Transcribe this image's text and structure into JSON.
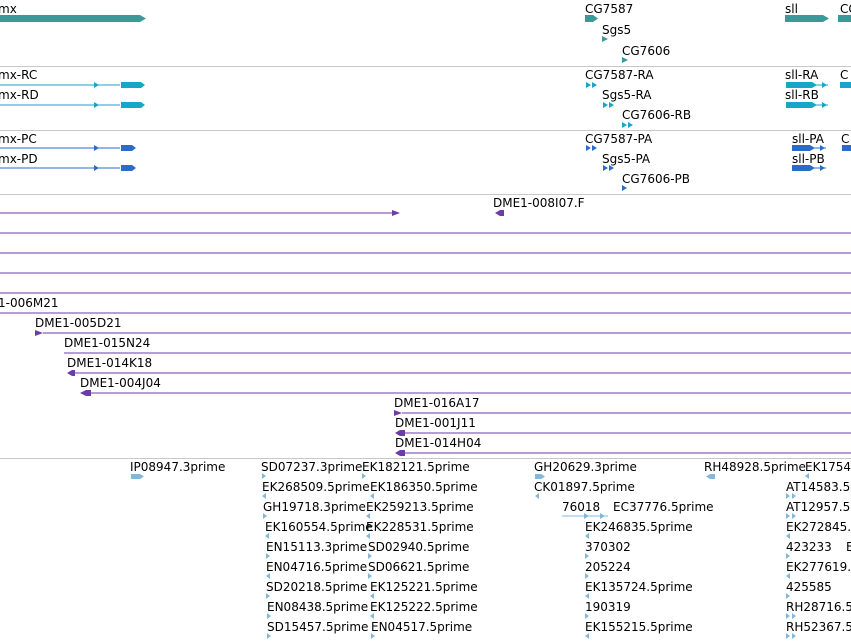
{
  "colors": {
    "gene": "#3a9a9a",
    "transcript": "#17a6c8",
    "protein": "#2a6cc8",
    "clone": "#6c3ca8",
    "est": "#82b8dc",
    "separator": "#c8c8c8",
    "text": "#000000"
  },
  "tracks": {
    "genes": [
      {
        "label": "mx"
      },
      {
        "label": "CG7587"
      },
      {
        "label": "Sgs5"
      },
      {
        "label": "CG7606"
      },
      {
        "label": "sll"
      },
      {
        "label": "CG"
      }
    ],
    "transcripts": [
      {
        "label": "mx-RC"
      },
      {
        "label": "mx-RD"
      },
      {
        "label": "CG7587-RA"
      },
      {
        "label": "Sgs5-RA"
      },
      {
        "label": "CG7606-RB"
      },
      {
        "label": "sll-RA"
      },
      {
        "label": "sll-RB"
      },
      {
        "label": "C"
      }
    ],
    "proteins": [
      {
        "label": "mx-PC"
      },
      {
        "label": "mx-PD"
      },
      {
        "label": "CG7587-PA"
      },
      {
        "label": "Sgs5-PA"
      },
      {
        "label": "CG7606-PB"
      },
      {
        "label": "sll-PA"
      },
      {
        "label": "sll-PB"
      },
      {
        "label": "C"
      }
    ],
    "clones": [
      {
        "label": "DME1-008I07.F"
      },
      {
        "label": "1-006M21"
      },
      {
        "label": "DME1-005D21"
      },
      {
        "label": "DME1-015N24"
      },
      {
        "label": "DME1-014K18"
      },
      {
        "label": "DME1-004J04"
      },
      {
        "label": "DME1-016A17"
      },
      {
        "label": "DME1-001J11"
      },
      {
        "label": "DME1-014H04"
      }
    ],
    "ests": [
      {
        "label": "IP08947.3prime"
      },
      {
        "label": "SD07237.3prime"
      },
      {
        "label": "EK182121.5prime"
      },
      {
        "label": "EK268509.5prime"
      },
      {
        "label": "EK186350.5prime"
      },
      {
        "label": "GH19718.3prime"
      },
      {
        "label": "EK259213.5prime"
      },
      {
        "label": "EK160554.5prime"
      },
      {
        "label": "EK228531.5prime"
      },
      {
        "label": "EN15113.3prime"
      },
      {
        "label": "SD02940.5prime"
      },
      {
        "label": "EN04716.5prime"
      },
      {
        "label": "SD06621.5prime"
      },
      {
        "label": "SD20218.5prime"
      },
      {
        "label": "EK125221.5prime"
      },
      {
        "label": "EN08438.5prime"
      },
      {
        "label": "EK125222.5prime"
      },
      {
        "label": "SD15457.5prime"
      },
      {
        "label": "EN04517.5prime"
      },
      {
        "label": "GH20629.3prime"
      },
      {
        "label": "CK01897.5prime"
      },
      {
        "label": "76018"
      },
      {
        "label": "EC37776.5prime"
      },
      {
        "label": "EK246835.5prime"
      },
      {
        "label": "370302"
      },
      {
        "label": "205224"
      },
      {
        "label": "EK135724.5prime"
      },
      {
        "label": "190319"
      },
      {
        "label": "EK155215.5prime"
      },
      {
        "label": "RH48928.5prime"
      },
      {
        "label": "EK1754"
      },
      {
        "label": "AT14583.5"
      },
      {
        "label": "AT12957.5"
      },
      {
        "label": "EK272845."
      },
      {
        "label": "423233"
      },
      {
        "label": "E"
      },
      {
        "label": "EK277619."
      },
      {
        "label": "425585"
      },
      {
        "label": "RH28716.5"
      },
      {
        "label": "RH52367.5"
      }
    ]
  }
}
